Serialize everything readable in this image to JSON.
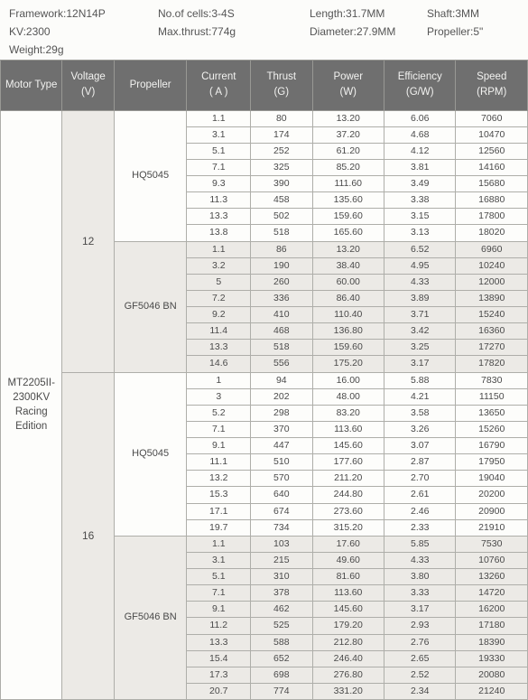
{
  "specs": {
    "framework_label": "Framework:",
    "framework": "12N14P",
    "cells_label": "No.of cells:",
    "cells": "3-4S",
    "length_label": "Length:",
    "length": "31.7MM",
    "shaft_label": "Shaft:",
    "shaft": "3MM",
    "kv_label": "KV:",
    "kv": "2300",
    "maxthrust_label": "Max.thrust:",
    "maxthrust": "774g",
    "diameter_label": "Diameter:",
    "diameter": "27.9MM",
    "propeller_label": "Propeller:",
    "propeller": "5\"",
    "weight_label": "Weight:",
    "weight": "29g"
  },
  "headers": {
    "motor": "Motor Type",
    "voltage": "Voltage",
    "voltage_unit": "(V)",
    "propeller": "Propeller",
    "current": "Current",
    "current_unit": "( A )",
    "thrust": "Thrust",
    "thrust_unit": "(G)",
    "power": "Power",
    "power_unit": "(W)",
    "efficiency": "Efficiency",
    "efficiency_unit": "(G/W)",
    "speed": "Speed",
    "speed_unit": "(RPM)"
  },
  "motor": "MT2205II-2300KV Racing Edition",
  "table": {
    "columns": [
      "Current",
      "Thrust",
      "Power",
      "Efficiency",
      "Speed"
    ],
    "type": "table",
    "background_color_a": "#fdfdfb",
    "background_color_b": "#eceae6",
    "header_bg": "#6f6f6f",
    "header_fg": "#f2f2f0",
    "border_color": "#aeaea9",
    "font_size_pt": 10.5
  },
  "groups": [
    {
      "voltage": "12",
      "prop": "HQ5045",
      "alt": false,
      "rows": [
        [
          "1.1",
          "80",
          "13.20",
          "6.06",
          "7060"
        ],
        [
          "3.1",
          "174",
          "37.20",
          "4.68",
          "10470"
        ],
        [
          "5.1",
          "252",
          "61.20",
          "4.12",
          "12560"
        ],
        [
          "7.1",
          "325",
          "85.20",
          "3.81",
          "14160"
        ],
        [
          "9.3",
          "390",
          "111.60",
          "3.49",
          "15680"
        ],
        [
          "11.3",
          "458",
          "135.60",
          "3.38",
          "16880"
        ],
        [
          "13.3",
          "502",
          "159.60",
          "3.15",
          "17800"
        ],
        [
          "13.8",
          "518",
          "165.60",
          "3.13",
          "18020"
        ]
      ]
    },
    {
      "voltage": "12",
      "prop": "GF5046 BN",
      "alt": true,
      "rows": [
        [
          "1.1",
          "86",
          "13.20",
          "6.52",
          "6960"
        ],
        [
          "3.2",
          "190",
          "38.40",
          "4.95",
          "10240"
        ],
        [
          "5",
          "260",
          "60.00",
          "4.33",
          "12000"
        ],
        [
          "7.2",
          "336",
          "86.40",
          "3.89",
          "13890"
        ],
        [
          "9.2",
          "410",
          "110.40",
          "3.71",
          "15240"
        ],
        [
          "11.4",
          "468",
          "136.80",
          "3.42",
          "16360"
        ],
        [
          "13.3",
          "518",
          "159.60",
          "3.25",
          "17270"
        ],
        [
          "14.6",
          "556",
          "175.20",
          "3.17",
          "17820"
        ]
      ]
    },
    {
      "voltage": "16",
      "prop": "HQ5045",
      "alt": false,
      "rows": [
        [
          "1",
          "94",
          "16.00",
          "5.88",
          "7830"
        ],
        [
          "3",
          "202",
          "48.00",
          "4.21",
          "11150"
        ],
        [
          "5.2",
          "298",
          "83.20",
          "3.58",
          "13650"
        ],
        [
          "7.1",
          "370",
          "113.60",
          "3.26",
          "15260"
        ],
        [
          "9.1",
          "447",
          "145.60",
          "3.07",
          "16790"
        ],
        [
          "11.1",
          "510",
          "177.60",
          "2.87",
          "17950"
        ],
        [
          "13.2",
          "570",
          "211.20",
          "2.70",
          "19040"
        ],
        [
          "15.3",
          "640",
          "244.80",
          "2.61",
          "20200"
        ],
        [
          "17.1",
          "674",
          "273.60",
          "2.46",
          "20900"
        ],
        [
          "19.7",
          "734",
          "315.20",
          "2.33",
          "21910"
        ]
      ]
    },
    {
      "voltage": "16",
      "prop": "GF5046 BN",
      "alt": true,
      "rows": [
        [
          "1.1",
          "103",
          "17.60",
          "5.85",
          "7530"
        ],
        [
          "3.1",
          "215",
          "49.60",
          "4.33",
          "10760"
        ],
        [
          "5.1",
          "310",
          "81.60",
          "3.80",
          "13260"
        ],
        [
          "7.1",
          "378",
          "113.60",
          "3.33",
          "14720"
        ],
        [
          "9.1",
          "462",
          "145.60",
          "3.17",
          "16200"
        ],
        [
          "11.2",
          "525",
          "179.20",
          "2.93",
          "17180"
        ],
        [
          "13.3",
          "588",
          "212.80",
          "2.76",
          "18390"
        ],
        [
          "15.4",
          "652",
          "246.40",
          "2.65",
          "19330"
        ],
        [
          "17.3",
          "698",
          "276.80",
          "2.52",
          "20080"
        ],
        [
          "20.7",
          "774",
          "331.20",
          "2.34",
          "21240"
        ]
      ]
    }
  ]
}
